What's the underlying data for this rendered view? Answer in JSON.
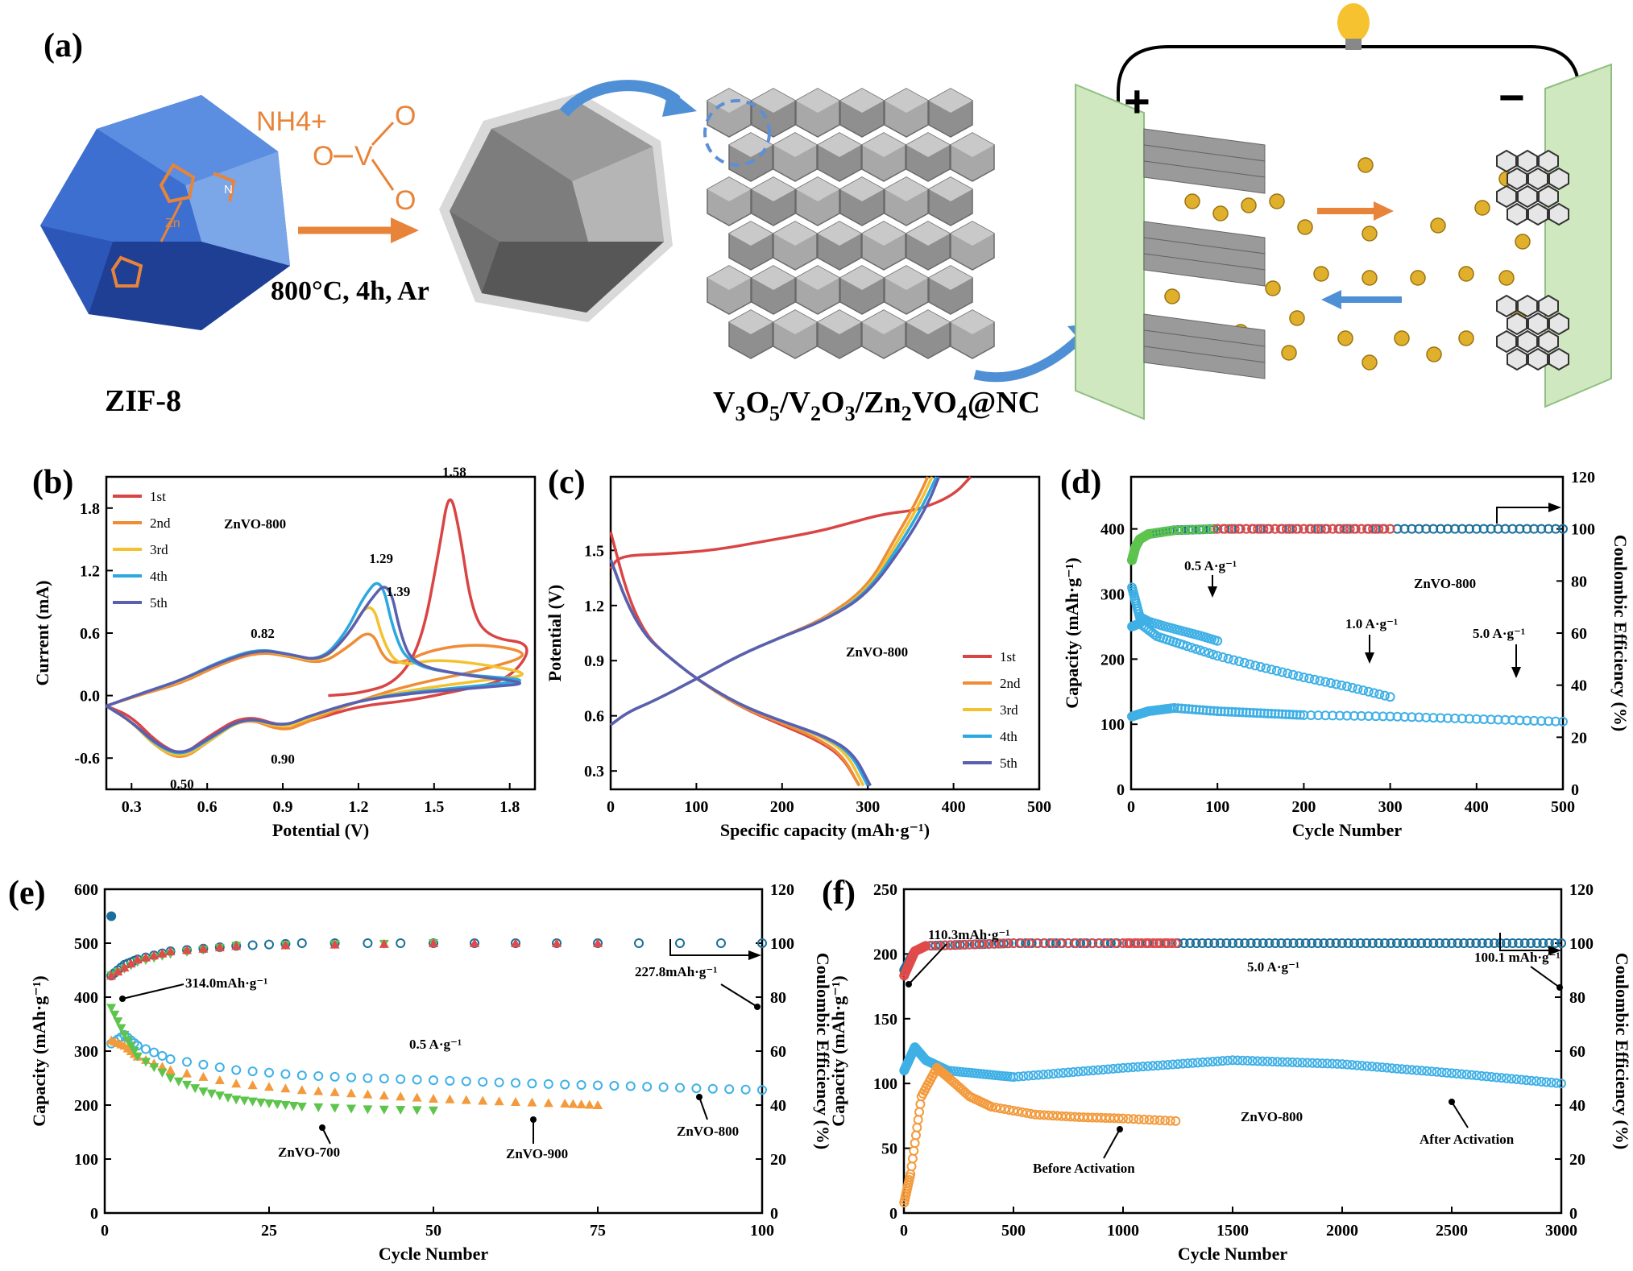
{
  "schematic": {
    "panel_label": "(a)",
    "reagent": "NH4+",
    "condition": "800°C, 4h, Ar",
    "precursor_label": "ZIF-8",
    "metal_label": "Zn",
    "n_label": "N",
    "vanadate_v": "V",
    "vanadate_o": "O",
    "product_label": "V3O5/V2O3/Zn2VO4@NC",
    "plus": "+",
    "minus": "−"
  },
  "colors": {
    "c1": "#d94545",
    "c2": "#ef8c36",
    "c3": "#f2c230",
    "c4": "#2aa8e0",
    "c5": "#5b5fb0",
    "orange": "#e8843a",
    "blue_cube": "#2c56b8",
    "green_plate": "#cfe8bf",
    "dark_ce": "#1a6f9a",
    "green_pts": "#5dc44c",
    "red_pts": "#e24a4a",
    "cap_blue": "#3fb0e6",
    "cap_orange": "#f39a3c"
  },
  "chart_data": [
    {
      "id": "b",
      "panel_label": "(b)",
      "type": "line",
      "xlabel": "Potential (V)",
      "ylabel": "Current (mA)",
      "xlim": [
        0.2,
        1.9
      ],
      "ylim": [
        -0.9,
        2.1
      ],
      "xticks": [
        "0.3",
        "0.6",
        "0.9",
        "1.2",
        "1.5",
        "1.8"
      ],
      "yticks": [
        "-0.6",
        "0.0",
        "0.6",
        "1.2",
        "1.8"
      ],
      "sample_label": "ZnVO-800",
      "legend": [
        "1st",
        "2nd",
        "3rd",
        "4th",
        "5th"
      ],
      "annotations": [
        "1.58",
        "1.29",
        "1.39",
        "0.82",
        "0.90",
        "0.50"
      ],
      "series": [
        {
          "name": "1st",
          "x": [
            1.08,
            1.2,
            1.35,
            1.45,
            1.52,
            1.56,
            1.6,
            1.65,
            1.72,
            1.9,
            1.8,
            1.6,
            1.4,
            1.2,
            1.0,
            0.9,
            0.75,
            0.6,
            0.5,
            0.4,
            0.3,
            0.2
          ],
          "y": [
            0.0,
            0.02,
            0.12,
            0.5,
            1.4,
            2.0,
            1.6,
            0.8,
            0.55,
            0.5,
            0.15,
            0.05,
            -0.05,
            -0.1,
            -0.25,
            -0.3,
            -0.18,
            -0.4,
            -0.58,
            -0.45,
            -0.2,
            -0.1
          ]
        },
        {
          "name": "2nd",
          "x": [
            0.2,
            0.35,
            0.5,
            0.65,
            0.8,
            0.92,
            1.05,
            1.15,
            1.25,
            1.3,
            1.36,
            1.5,
            1.7,
            1.9,
            1.7,
            1.4,
            1.2,
            1.0,
            0.9,
            0.75,
            0.6,
            0.5,
            0.4,
            0.3,
            0.2
          ],
          "y": [
            -0.1,
            0.02,
            0.12,
            0.3,
            0.42,
            0.38,
            0.3,
            0.45,
            0.65,
            0.35,
            0.3,
            0.45,
            0.5,
            0.4,
            0.25,
            0.1,
            -0.05,
            -0.25,
            -0.35,
            -0.2,
            -0.45,
            -0.62,
            -0.5,
            -0.25,
            -0.1
          ]
        },
        {
          "name": "3rd",
          "x": [
            0.2,
            0.35,
            0.5,
            0.65,
            0.8,
            0.92,
            1.05,
            1.15,
            1.25,
            1.3,
            1.36,
            1.5,
            1.7,
            1.9,
            1.7,
            1.4,
            1.2,
            1.0,
            0.9,
            0.75,
            0.6,
            0.5,
            0.4,
            0.3,
            0.2
          ],
          "y": [
            -0.1,
            0.03,
            0.14,
            0.32,
            0.44,
            0.39,
            0.32,
            0.55,
            0.95,
            0.5,
            0.28,
            0.35,
            0.3,
            0.2,
            0.15,
            0.05,
            -0.05,
            -0.22,
            -0.32,
            -0.2,
            -0.45,
            -0.6,
            -0.5,
            -0.25,
            -0.1
          ]
        },
        {
          "name": "4th",
          "x": [
            0.2,
            0.35,
            0.5,
            0.65,
            0.8,
            0.92,
            1.05,
            1.15,
            1.22,
            1.29,
            1.34,
            1.4,
            1.6,
            1.9,
            1.7,
            1.4,
            1.2,
            1.0,
            0.9,
            0.75,
            0.6,
            0.5,
            0.4,
            0.3,
            0.2
          ],
          "y": [
            -0.1,
            0.03,
            0.15,
            0.33,
            0.45,
            0.4,
            0.33,
            0.6,
            0.95,
            1.15,
            0.6,
            0.3,
            0.2,
            0.15,
            0.1,
            0.03,
            -0.05,
            -0.2,
            -0.3,
            -0.2,
            -0.43,
            -0.58,
            -0.48,
            -0.25,
            -0.1
          ]
        },
        {
          "name": "5th",
          "x": [
            0.2,
            0.35,
            0.5,
            0.65,
            0.8,
            0.92,
            1.05,
            1.15,
            1.24,
            1.32,
            1.37,
            1.42,
            1.6,
            1.9,
            1.7,
            1.4,
            1.2,
            1.0,
            0.9,
            0.75,
            0.6,
            0.5,
            0.4,
            0.3,
            0.2
          ],
          "y": [
            -0.1,
            0.03,
            0.15,
            0.32,
            0.44,
            0.4,
            0.33,
            0.55,
            0.9,
            1.12,
            0.55,
            0.3,
            0.2,
            0.12,
            0.08,
            0.02,
            -0.05,
            -0.2,
            -0.3,
            -0.2,
            -0.42,
            -0.57,
            -0.47,
            -0.25,
            -0.1
          ]
        }
      ]
    },
    {
      "id": "c",
      "panel_label": "(c)",
      "type": "line",
      "xlabel": "Specific capacity (mAh·g⁻¹)",
      "ylabel": "Potential (V)",
      "xlim": [
        0,
        500
      ],
      "ylim": [
        0.2,
        1.9
      ],
      "xticks": [
        "0",
        "100",
        "200",
        "300",
        "400",
        "500"
      ],
      "yticks": [
        "0.3",
        "0.6",
        "0.9",
        "1.2",
        "1.5"
      ],
      "sample_label": "ZnVO-800",
      "legend": [
        "1st",
        "2nd",
        "3rd",
        "4th",
        "5th"
      ],
      "series": [
        {
          "name": "1st charge",
          "x": [
            0,
            10,
            60,
            120,
            180,
            240,
            280,
            320,
            360,
            400,
            420
          ],
          "y": [
            1.4,
            1.47,
            1.48,
            1.5,
            1.55,
            1.6,
            1.65,
            1.7,
            1.72,
            1.8,
            1.9
          ]
        },
        {
          "name": "1st discharge",
          "x": [
            0,
            20,
            40,
            60,
            100,
            150,
            200,
            240,
            270,
            290
          ],
          "y": [
            1.6,
            1.25,
            1.05,
            0.95,
            0.8,
            0.65,
            0.55,
            0.47,
            0.38,
            0.22
          ]
        },
        {
          "name": "2nd charge",
          "x": [
            0,
            20,
            50,
            100,
            150,
            200,
            250,
            300,
            330,
            355,
            370
          ],
          "y": [
            0.55,
            0.62,
            0.68,
            0.8,
            0.93,
            1.03,
            1.13,
            1.3,
            1.55,
            1.75,
            1.9
          ]
        },
        {
          "name": "2nd discharge",
          "x": [
            0,
            20,
            40,
            60,
            100,
            150,
            200,
            240,
            270,
            290
          ],
          "y": [
            1.45,
            1.2,
            1.04,
            0.95,
            0.8,
            0.65,
            0.56,
            0.48,
            0.39,
            0.22
          ]
        },
        {
          "name": "3rd charge",
          "x": [
            0,
            20,
            50,
            100,
            150,
            200,
            250,
            300,
            335,
            360,
            375
          ],
          "y": [
            0.55,
            0.62,
            0.68,
            0.8,
            0.93,
            1.03,
            1.12,
            1.28,
            1.55,
            1.75,
            1.9
          ]
        },
        {
          "name": "3rd discharge",
          "x": [
            0,
            20,
            40,
            60,
            100,
            150,
            200,
            245,
            275,
            295
          ],
          "y": [
            1.45,
            1.2,
            1.04,
            0.95,
            0.8,
            0.66,
            0.57,
            0.49,
            0.4,
            0.22
          ]
        },
        {
          "name": "4th charge",
          "x": [
            0,
            20,
            50,
            100,
            150,
            200,
            250,
            300,
            340,
            365,
            380
          ],
          "y": [
            0.55,
            0.62,
            0.68,
            0.8,
            0.93,
            1.03,
            1.12,
            1.27,
            1.55,
            1.75,
            1.9
          ]
        },
        {
          "name": "4th discharge",
          "x": [
            0,
            20,
            40,
            60,
            100,
            150,
            200,
            248,
            280,
            300
          ],
          "y": [
            1.45,
            1.2,
            1.04,
            0.95,
            0.8,
            0.66,
            0.57,
            0.49,
            0.4,
            0.22
          ]
        },
        {
          "name": "5th charge",
          "x": [
            0,
            20,
            50,
            100,
            150,
            200,
            250,
            300,
            345,
            370,
            383
          ],
          "y": [
            0.55,
            0.62,
            0.68,
            0.8,
            0.93,
            1.03,
            1.12,
            1.26,
            1.55,
            1.75,
            1.9
          ]
        },
        {
          "name": "5th discharge",
          "x": [
            0,
            20,
            40,
            60,
            100,
            150,
            200,
            250,
            283,
            303
          ],
          "y": [
            1.45,
            1.2,
            1.04,
            0.95,
            0.8,
            0.66,
            0.57,
            0.49,
            0.4,
            0.22
          ]
        }
      ]
    },
    {
      "id": "d",
      "panel_label": "(d)",
      "type": "scatter",
      "xlabel": "Cycle Number",
      "ylabel": "Capacity (mAh·g⁻¹)",
      "y2label": "Coulombic Efficiency (%)",
      "xlim": [
        0,
        500
      ],
      "ylim": [
        0,
        480
      ],
      "y2lim": [
        0,
        120
      ],
      "xticks": [
        "0",
        "100",
        "200",
        "300",
        "400",
        "500"
      ],
      "yticks": [
        "0",
        "100",
        "200",
        "300",
        "400"
      ],
      "y2ticks": [
        "0",
        "20",
        "40",
        "60",
        "80",
        "100",
        "120"
      ],
      "sample_label": "ZnVO-800",
      "annotations": [
        "0.5 A·g⁻¹",
        "1.0 A·g⁻¹",
        "5.0 A·g⁻¹"
      ],
      "series": [
        {
          "name": "0.5 A·g⁻¹ capacity",
          "x": [
            1,
            5,
            10,
            20,
            40,
            60,
            80,
            100
          ],
          "y": [
            310,
            290,
            265,
            258,
            250,
            243,
            236,
            228
          ]
        },
        {
          "name": "1.0 A·g⁻¹ capacity",
          "x": [
            1,
            10,
            30,
            60,
            100,
            150,
            200,
            250,
            300
          ],
          "y": [
            250,
            255,
            235,
            222,
            205,
            188,
            172,
            158,
            142
          ]
        },
        {
          "name": "5.0 A·g⁻¹ capacity",
          "x": [
            1,
            20,
            50,
            100,
            150,
            200,
            300,
            400,
            500
          ],
          "y": [
            112,
            120,
            125,
            120,
            117,
            114,
            112,
            108,
            104
          ]
        },
        {
          "name": "CE",
          "x": [
            1,
            5,
            10,
            20,
            50,
            100,
            200,
            300,
            400,
            500
          ],
          "y": [
            88,
            93,
            96,
            98,
            99.5,
            100,
            100,
            100,
            100,
            100
          ]
        }
      ]
    },
    {
      "id": "e",
      "panel_label": "(e)",
      "type": "scatter",
      "xlabel": "Cycle Number",
      "ylabel": "Capacity (mAh·g⁻¹)",
      "y2label": "Coulombic Efficiency (%)",
      "xlim": [
        0,
        100
      ],
      "ylim": [
        0,
        600
      ],
      "y2lim": [
        0,
        120
      ],
      "xticks": [
        "0",
        "25",
        "50",
        "75",
        "100"
      ],
      "yticks": [
        "0",
        "100",
        "200",
        "300",
        "400",
        "500",
        "600"
      ],
      "y2ticks": [
        "0",
        "20",
        "40",
        "60",
        "80",
        "100",
        "120"
      ],
      "annotations": [
        "314.0mAh·g⁻¹",
        "0.5 A·g⁻¹",
        "227.8mAh·g⁻¹",
        "ZnVO-700",
        "ZnVO-900",
        "ZnVO-800"
      ],
      "series": [
        {
          "name": "ZnVO-800",
          "x": [
            1,
            3,
            5,
            10,
            20,
            30,
            40,
            50,
            60,
            70,
            80,
            90,
            100
          ],
          "y": [
            314,
            330,
            310,
            285,
            265,
            255,
            250,
            246,
            242,
            238,
            235,
            231,
            228
          ]
        },
        {
          "name": "ZnVO-900",
          "x": [
            1,
            3,
            5,
            10,
            20,
            30,
            40,
            50,
            60,
            70,
            75
          ],
          "y": [
            320,
            310,
            290,
            265,
            240,
            228,
            220,
            212,
            207,
            203,
            200
          ]
        },
        {
          "name": "ZnVO-700",
          "x": [
            1,
            3,
            5,
            10,
            15,
            20,
            25,
            30,
            40,
            50
          ],
          "y": [
            380,
            330,
            290,
            250,
            225,
            210,
            203,
            197,
            192,
            190
          ]
        },
        {
          "name": "CE",
          "x": [
            1,
            3,
            5,
            10,
            20,
            30,
            50,
            75,
            100
          ],
          "y": [
            88,
            92,
            94,
            97,
            99,
            100,
            100,
            100,
            100
          ]
        }
      ]
    },
    {
      "id": "f",
      "panel_label": "(f)",
      "type": "scatter",
      "xlabel": "Cycle Number",
      "ylabel": "Capacity (mAh·g⁻¹)",
      "y2label": "Coulombic Efficiency (%)",
      "xlim": [
        0,
        3000
      ],
      "ylim": [
        0,
        250
      ],
      "y2lim": [
        0,
        120
      ],
      "xticks": [
        "0",
        "500",
        "1000",
        "1500",
        "2000",
        "2500",
        "3000"
      ],
      "yticks": [
        "0",
        "50",
        "100",
        "150",
        "200",
        "250"
      ],
      "y2ticks": [
        "0",
        "20",
        "40",
        "60",
        "80",
        "100",
        "120"
      ],
      "sample_label": "ZnVO-800",
      "annotations": [
        "110.3mAh·g⁻¹",
        "5.0 A·g⁻¹",
        "100.1 mAh·g⁻¹",
        "Before Activation",
        "After Activation"
      ],
      "series": [
        {
          "name": "After Activation",
          "x": [
            1,
            50,
            100,
            200,
            500,
            1000,
            1500,
            2000,
            2500,
            3000
          ],
          "y": [
            110,
            128,
            118,
            110,
            105,
            112,
            118,
            115,
            108,
            100
          ]
        },
        {
          "name": "Before Activation",
          "x": [
            1,
            30,
            80,
            150,
            200,
            300,
            400,
            600,
            800,
            1000,
            1240
          ],
          "y": [
            8,
            30,
            90,
            112,
            105,
            90,
            82,
            76,
            74,
            73,
            71
          ]
        },
        {
          "name": "CE",
          "x": [
            1,
            50,
            100,
            500,
            1000,
            1500,
            2000,
            2500,
            3000
          ],
          "y": [
            90,
            97,
            99,
            100,
            100,
            100,
            100,
            100,
            100
          ]
        }
      ]
    }
  ]
}
